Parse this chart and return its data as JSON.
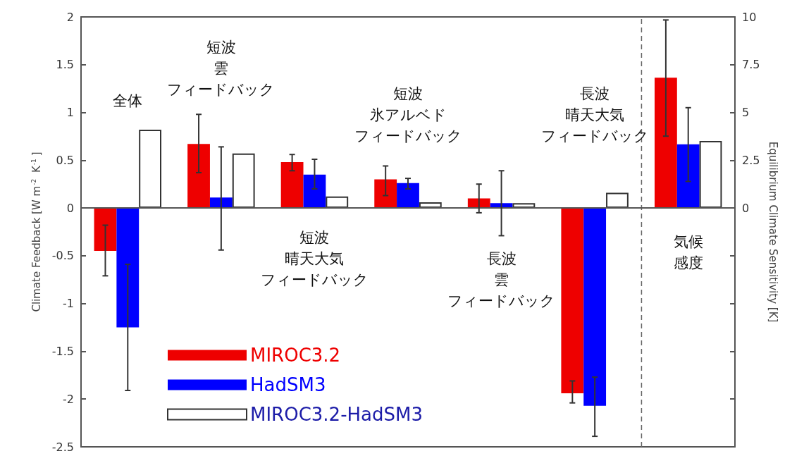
{
  "chart_data": {
    "type": "bar",
    "ylabel": "Climate Feedback [W m$^{-2}$ K$^{-1}$]",
    "y2label": "Equilibrium Climate Sensitivity [K]",
    "categories": [
      "全体",
      "短波雲フィードバック",
      "短波晴天大気フィードバック",
      "短波氷アルベドフィードバック",
      "長波雲フィードバック",
      "長波晴天大気フィードバック",
      "気候感度"
    ],
    "series": [
      {
        "name": "MIROC3.2",
        "color": "#ee0000",
        "values": [
          -0.45,
          0.67,
          0.48,
          0.3,
          0.1,
          -1.94,
          null
        ],
        "errors": [
          [
            -0.71,
            -0.18
          ],
          [
            0.37,
            0.98
          ],
          [
            0.39,
            0.56
          ],
          [
            0.13,
            0.44
          ],
          [
            -0.05,
            0.25
          ],
          [
            -2.04,
            -1.81
          ],
          null
        ]
      },
      {
        "name": "HadSM3",
        "color": "#0000ff",
        "values": [
          -1.25,
          0.11,
          0.35,
          0.26,
          0.05,
          -2.07,
          null
        ],
        "errors": [
          [
            -1.91,
            -0.59
          ],
          [
            -0.44,
            0.64
          ],
          [
            0.2,
            0.51
          ],
          [
            0.2,
            0.31
          ],
          [
            -0.29,
            0.39
          ],
          [
            -2.39,
            -1.77
          ],
          null
        ]
      },
      {
        "name": "MIROC3.2-HadSM3",
        "color": "#ffffff",
        "values": [
          0.82,
          0.57,
          0.12,
          0.06,
          0.05,
          0.16,
          null
        ]
      },
      {
        "color": "#ee0000",
        "axis": "y2",
        "values": [
          null,
          null,
          null,
          null,
          null,
          null,
          6.82
        ],
        "errors": [
          null,
          null,
          null,
          null,
          null,
          null,
          [
            3.76,
            9.84
          ]
        ]
      },
      {
        "color": "#0000ff",
        "axis": "y2",
        "values": [
          null,
          null,
          null,
          null,
          null,
          null,
          3.33
        ],
        "errors": [
          null,
          null,
          null,
          null,
          null,
          null,
          [
            1.39,
            5.25
          ]
        ]
      },
      {
        "color": "#ffffff",
        "axis": "y2",
        "values": [
          null,
          null,
          null,
          null,
          null,
          null,
          3.51
        ]
      }
    ],
    "ylim": [
      -2.5,
      2
    ],
    "yticks": [
      -2.5,
      -2,
      -1.5,
      -1,
      -0.5,
      0,
      0.5,
      1,
      1.5,
      2
    ],
    "y2lim": [
      -12.5,
      10
    ],
    "y2ticks": [
      {
        "value": -12.5,
        "label": null
      },
      {
        "value": -10,
        "label": null
      },
      {
        "value": -7.5,
        "label": null
      },
      {
        "value": -5,
        "label": null
      },
      {
        "value": -2.5,
        "label": null
      },
      0,
      2.5,
      5,
      7.5,
      10
    ],
    "legend": "bottom left",
    "grid": false,
    "tick_labels": "y"
  }
}
